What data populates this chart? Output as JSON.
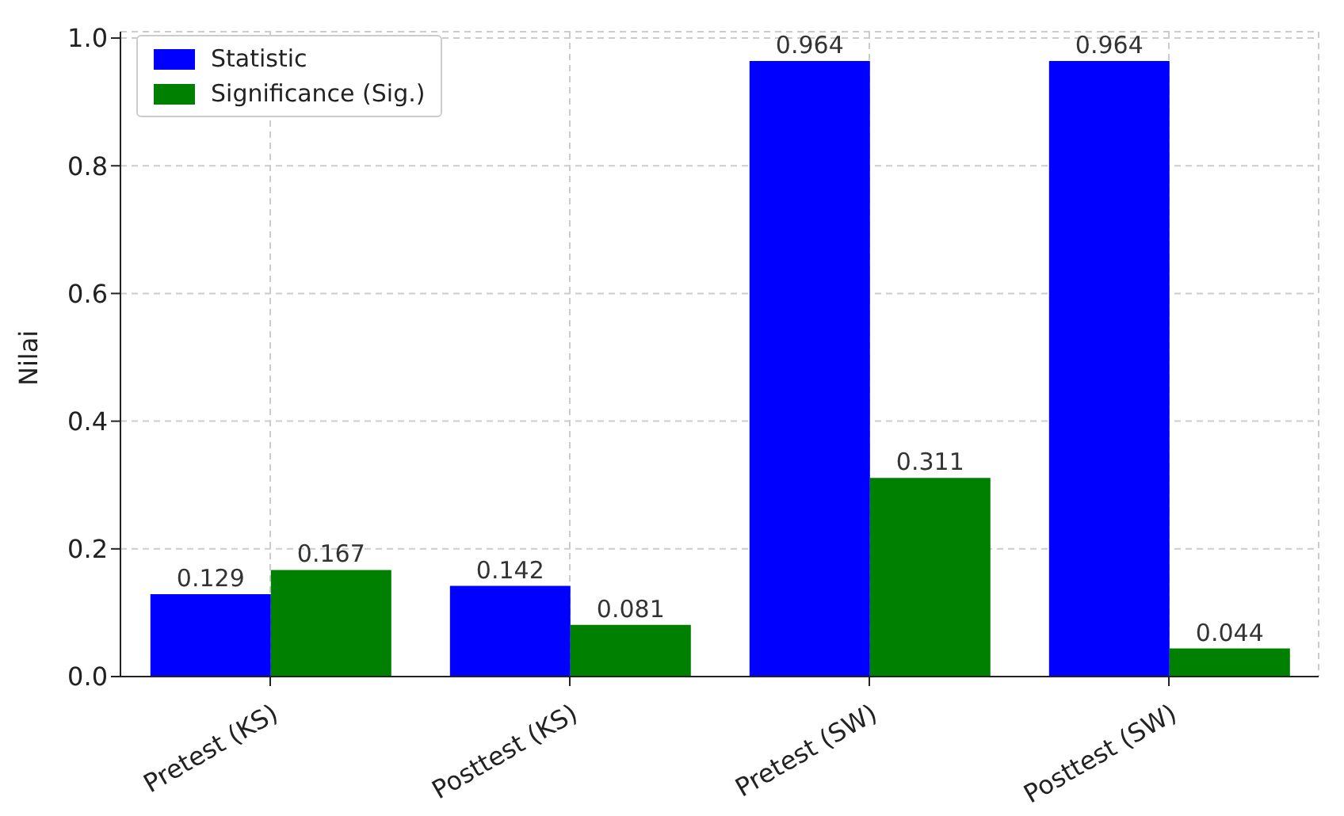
{
  "chart_data": {
    "type": "bar",
    "ylabel": "Nilai",
    "categories": [
      "Pretest (KS)",
      "Posttest (KS)",
      "Pretest (SW)",
      "Posttest (SW)"
    ],
    "series": [
      {
        "name": "Statistic",
        "color": "#0000ff",
        "values": [
          0.129,
          0.142,
          0.964,
          0.964
        ]
      },
      {
        "name": "Significance (Sig.)",
        "color": "#008000",
        "values": [
          0.167,
          0.081,
          0.311,
          0.044
        ]
      }
    ],
    "ylim": [
      0,
      1.01
    ],
    "yticks": [
      {
        "value": 0,
        "label": "0.0"
      },
      0.2,
      0.4,
      0.6,
      0.8,
      {
        "value": 1,
        "label": "1.0"
      }
    ],
    "grid": true,
    "legend": "top left",
    "data_labels": true
  }
}
